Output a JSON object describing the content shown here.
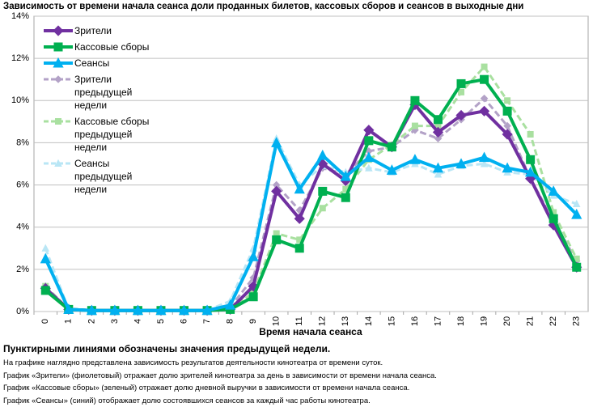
{
  "chart_data": {
    "type": "line",
    "title": "Зависимость от времени начала сеанса доли проданных билетов, кассовых сборов и сеансов в выходные дни",
    "x_label": "Время начала сеанса",
    "categories": [
      "0",
      "1",
      "2",
      "3",
      "4",
      "5",
      "6",
      "7",
      "8",
      "9",
      "10",
      "11",
      "12",
      "13",
      "14",
      "15",
      "16",
      "17",
      "18",
      "19",
      "20",
      "21",
      "22",
      "23"
    ],
    "ylim": [
      0,
      14
    ],
    "yticks": [
      {
        "value": 0,
        "label": "0%"
      },
      {
        "value": 2,
        "label": "2%"
      },
      {
        "value": 4,
        "label": "4%"
      },
      {
        "value": 6,
        "label": "6%"
      },
      {
        "value": 8,
        "label": "8%"
      },
      {
        "value": 10,
        "label": "10%"
      },
      {
        "value": 12,
        "label": "12%"
      },
      {
        "value": 14,
        "label": "14%"
      }
    ],
    "grid": true,
    "legend": "top-left",
    "series": [
      {
        "name": "Зрители",
        "color": "#7030a0",
        "marker": "diamond",
        "dashed": false,
        "values": [
          1.1,
          0.1,
          0.05,
          0.05,
          0.05,
          0.05,
          0.05,
          0.05,
          0.1,
          1.2,
          5.7,
          4.4,
          7.0,
          6.2,
          8.6,
          7.8,
          9.8,
          8.5,
          9.3,
          9.5,
          8.4,
          6.3,
          4.1,
          2.1
        ]
      },
      {
        "name": "Кассовые сборы",
        "color": "#00b050",
        "marker": "square",
        "dashed": false,
        "values": [
          1.0,
          0.1,
          0.05,
          0.05,
          0.05,
          0.05,
          0.05,
          0.05,
          0.1,
          0.7,
          3.4,
          3.0,
          5.7,
          5.4,
          8.1,
          7.8,
          10.0,
          9.1,
          10.8,
          11.0,
          9.5,
          7.2,
          4.4,
          2.1
        ]
      },
      {
        "name": "Сеансы",
        "color": "#00b0f0",
        "marker": "triangle",
        "dashed": false,
        "values": [
          2.5,
          0.1,
          0.05,
          0.05,
          0.05,
          0.05,
          0.05,
          0.05,
          0.3,
          2.6,
          8.0,
          5.8,
          7.4,
          6.4,
          7.3,
          6.7,
          7.2,
          6.8,
          7.0,
          7.3,
          6.8,
          6.6,
          5.7,
          4.6
        ]
      },
      {
        "name": "Зрители предыдущей недели",
        "color": "#b3a2c7",
        "marker": "diamond",
        "dashed": true,
        "values": [
          1.2,
          0.1,
          0.05,
          0.05,
          0.05,
          0.05,
          0.05,
          0.05,
          0.2,
          1.6,
          6.0,
          4.8,
          6.8,
          6.5,
          7.6,
          7.8,
          8.6,
          8.2,
          9.1,
          10.1,
          8.8,
          6.3,
          4.3,
          2.4
        ]
      },
      {
        "name": "Кассовые сборы предыдущей недели",
        "color": "#a9e0a0",
        "marker": "square",
        "dashed": true,
        "values": [
          1.2,
          0.1,
          0.05,
          0.05,
          0.05,
          0.05,
          0.05,
          0.05,
          0.1,
          0.9,
          3.7,
          3.4,
          4.9,
          5.8,
          7.2,
          7.9,
          8.8,
          8.8,
          10.4,
          11.6,
          10.0,
          8.4,
          4.7,
          2.5
        ]
      },
      {
        "name": "Сеансы предыдущей недели",
        "color": "#b9e6f5",
        "marker": "triangle",
        "dashed": true,
        "values": [
          3.0,
          0.1,
          0.05,
          0.05,
          0.05,
          0.05,
          0.05,
          0.05,
          0.5,
          3.0,
          8.2,
          6.0,
          6.9,
          6.6,
          6.8,
          6.6,
          7.0,
          6.5,
          6.9,
          7.0,
          6.6,
          6.5,
          5.5,
          5.1
        ]
      }
    ]
  },
  "notes": {
    "heading": "Пунктирными линиями обозначены значения предыдущей недели.",
    "lines": [
      "На графике наглядно представлена зависимость результатов деятельности кинотеатра от времени суток.",
      "График «Зрители» (фиолетовый) отражает долю зрителей кинотеатра за день в зависимости от времени начала сеанса.",
      "График «Кассовые сборы» (зеленый) отражает долю дневной выручки в зависимости от времени начала сеанса.",
      "График «Сеансы» (синий) отображает долю состоявшихся сеансов за каждый час работы кинотеатра."
    ]
  }
}
